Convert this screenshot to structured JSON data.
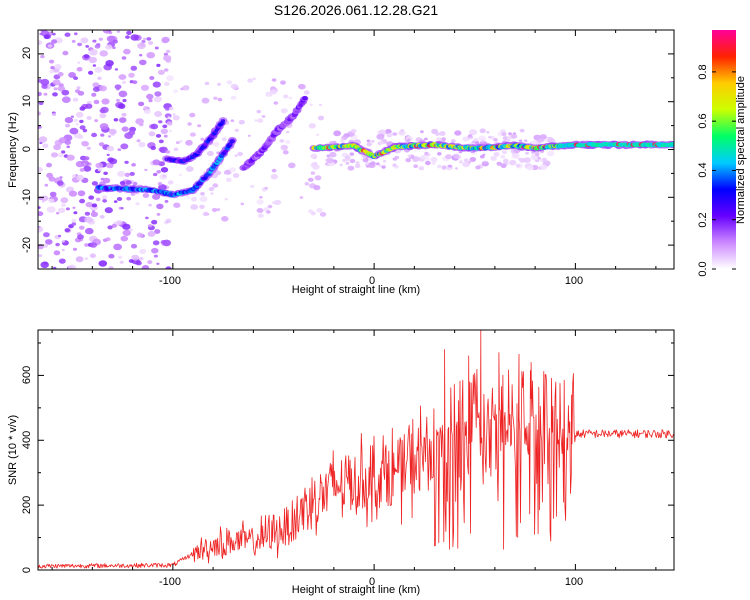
{
  "title": "S126.2026.061.12.28.G21",
  "chart_data": [
    {
      "type": "heatmap",
      "title": "S126.2026.061.12.28.G21",
      "xlabel": "Height of straight line (km)",
      "ylabel": "Frequency (Hz)",
      "xlim": [
        -167,
        149
      ],
      "ylim": [
        -25,
        25
      ],
      "xticks": [
        -100,
        0,
        100
      ],
      "yticks": [
        -20,
        -10,
        0,
        10,
        20
      ],
      "xtick_labels": [
        "-100",
        "0",
        "100"
      ],
      "ytick_labels": [
        "-20",
        "-10",
        "0",
        "10",
        "20"
      ],
      "colorbar": {
        "label": "Normalized spectral amplitude",
        "range": [
          0,
          0.97
        ],
        "ticks": [
          "0.0",
          "0.2",
          "0.4",
          "0.6",
          "0.8"
        ],
        "tick_values": [
          0.0,
          0.2,
          0.4,
          0.6,
          0.8
        ],
        "colors": [
          "#ffffff",
          "#cc88ff",
          "#6600ff",
          "#0000ff",
          "#00ccff",
          "#00ff66",
          "#ccff00",
          "#ffcc00",
          "#ff2200",
          "#ff0099"
        ]
      },
      "traces": [
        {
          "name": "main-trace",
          "x": [
            -30,
            -20,
            -10,
            0,
            10,
            20,
            30,
            40,
            50,
            60,
            70,
            80,
            90,
            100,
            120,
            149
          ],
          "y": [
            0.3,
            0.5,
            0.8,
            -1.5,
            0.5,
            0.8,
            1.0,
            0.5,
            0.3,
            0.5,
            0.8,
            0.3,
            0.7,
            1.0,
            1.0,
            1.0
          ],
          "peak": 0.75
        },
        {
          "name": "lower-trace",
          "x": [
            -137,
            -125,
            -110,
            -100,
            -90,
            -82,
            -75,
            -70
          ],
          "y": [
            -8,
            -8.2,
            -8.5,
            -9.5,
            -8.5,
            -5,
            -1,
            2
          ],
          "peak": 0.45
        },
        {
          "name": "upper-trace",
          "x": [
            -103,
            -95,
            -88,
            -80,
            -75
          ],
          "y": [
            -2,
            -2.5,
            -1,
            3,
            6
          ],
          "peak": 0.35
        },
        {
          "name": "branch-trace",
          "x": [
            -65,
            -55,
            -48,
            -40,
            -34
          ],
          "y": [
            -4,
            0,
            4,
            7,
            11
          ],
          "peak": 0.25
        }
      ]
    },
    {
      "type": "line",
      "xlabel": "Height of straight line (km)",
      "ylabel": "SNR (10 * v/v)",
      "xlim": [
        -167,
        149
      ],
      "ylim": [
        0,
        740
      ],
      "xticks": [
        -100,
        0,
        100
      ],
      "yticks": [
        0,
        200,
        400,
        600
      ],
      "xtick_labels": [
        "-100",
        "0",
        "100"
      ],
      "ytick_labels": [
        "0",
        "200",
        "400",
        "600"
      ],
      "color": "#ee2222",
      "envelope": {
        "x": [
          -167,
          -100,
          -90,
          -80,
          -70,
          -60,
          -50,
          -40,
          -30,
          -20,
          -10,
          0,
          10,
          20,
          30,
          40,
          50,
          60,
          70,
          80,
          90,
          97,
          100,
          120,
          149
        ],
        "y": [
          12,
          15,
          50,
          75,
          90,
          90,
          110,
          150,
          220,
          260,
          270,
          280,
          300,
          330,
          380,
          420,
          450,
          440,
          440,
          420,
          390,
          380,
          420,
          420,
          420
        ]
      },
      "peaks": [
        {
          "x": 53,
          "y": 740
        },
        {
          "x": 35,
          "y": 680
        },
        {
          "x": 47,
          "y": 660
        },
        {
          "x": 62,
          "y": 670
        },
        {
          "x": 72,
          "y": 665
        },
        {
          "x": 78,
          "y": 640
        },
        {
          "x": 98,
          "y": 540
        }
      ]
    }
  ]
}
